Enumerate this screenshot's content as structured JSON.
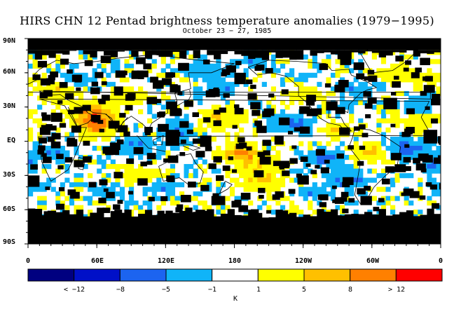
{
  "title": "HIRS CHN 12 Pentad brightness temperature anomalies (1979−1995)",
  "subtitle": "October 23 − 27, 1985",
  "lat_labels": [
    "90N",
    "60N",
    "30N",
    "EQ",
    "30S",
    "60S",
    "90S"
  ],
  "lon_labels": [
    "0",
    "60E",
    "120E",
    "180",
    "120W",
    "60W",
    "0"
  ],
  "colorbar": {
    "colors": [
      "#000080",
      "#0010c8",
      "#1c64f0",
      "#10b4f8",
      "#ffffff",
      "#ffff00",
      "#ffc000",
      "#ff8000",
      "#ff0000"
    ],
    "labels": [
      "< −12",
      "−8",
      "−5",
      "−1",
      "1",
      "5",
      "8",
      "> 12"
    ],
    "unit": "K"
  },
  "map": {
    "missing_color": "#000000",
    "coast_color": "#000000"
  }
}
